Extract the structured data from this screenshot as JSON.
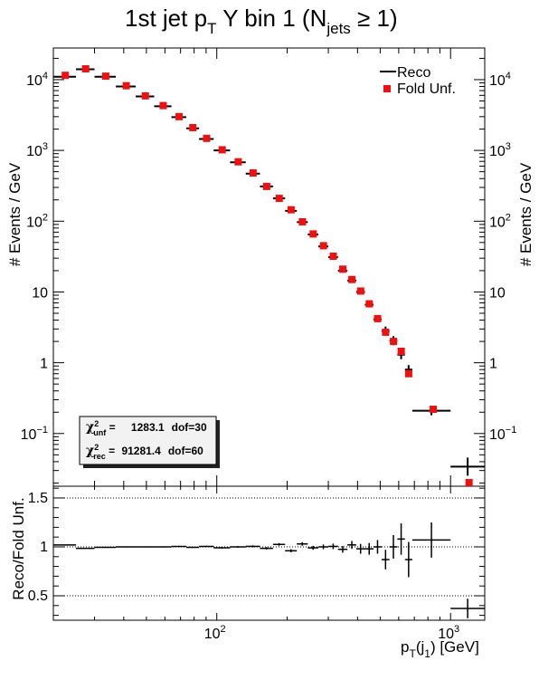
{
  "title": "1st jet p",
  "title_sub_T": "T",
  "title_rest": " Y bin 1 (N",
  "title_sub_jets": "jets",
  "title_end": " ≥ 1)",
  "legend": {
    "reco": "Reco",
    "fold": "Fold Unf."
  },
  "chi2": {
    "unf_label": "unf",
    "unf_value": "1283.1",
    "unf_dof": "dof=30",
    "rec_label": "rec",
    "rec_value": "91281.4",
    "rec_dof": "dof=60"
  },
  "colors": {
    "fold_marker": "#ee1111",
    "reco": "#000000"
  },
  "chart_data": [
    {
      "type": "scatter",
      "panel": "top",
      "ylabel": "# Events / GeV",
      "xscale": "log",
      "yscale": "log",
      "xlim": [
        20,
        1400
      ],
      "ylim": [
        0.018,
        28000
      ],
      "y_ticks": [
        {
          "v": 0.1,
          "t": "10",
          "sup": "−1"
        },
        {
          "v": 1,
          "t": "1"
        },
        {
          "v": 10,
          "t": "10"
        },
        {
          "v": 100,
          "t": "10",
          "sup": "2"
        },
        {
          "v": 1000,
          "t": "10",
          "sup": "3"
        },
        {
          "v": 10000,
          "t": "10",
          "sup": "4"
        }
      ],
      "series": [
        {
          "name": "Reco",
          "points": [
            {
              "x0": 20,
              "x1": 25,
              "y": 11000
            },
            {
              "x0": 25,
              "x1": 30,
              "y": 14000
            },
            {
              "x0": 30,
              "x1": 37,
              "y": 11000
            },
            {
              "x0": 37,
              "x1": 45,
              "y": 8000
            },
            {
              "x0": 45,
              "x1": 54,
              "y": 5800
            },
            {
              "x0": 54,
              "x1": 64,
              "y": 4200
            },
            {
              "x0": 64,
              "x1": 74,
              "y": 2950
            },
            {
              "x0": 74,
              "x1": 84,
              "y": 2050
            },
            {
              "x0": 84,
              "x1": 97,
              "y": 1450
            },
            {
              "x0": 97,
              "x1": 114,
              "y": 1000
            },
            {
              "x0": 114,
              "x1": 133,
              "y": 680
            },
            {
              "x0": 133,
              "x1": 153,
              "y": 470
            },
            {
              "x0": 153,
              "x1": 174,
              "y": 310
            },
            {
              "x0": 174,
              "x1": 196,
              "y": 210
            },
            {
              "x0": 196,
              "x1": 220,
              "y": 140
            },
            {
              "x0": 220,
              "x1": 245,
              "y": 97
            },
            {
              "x0": 245,
              "x1": 272,
              "y": 65
            },
            {
              "x0": 272,
              "x1": 300,
              "y": 44
            },
            {
              "x0": 300,
              "x1": 330,
              "y": 31
            },
            {
              "x0": 330,
              "x1": 362,
              "y": 20
            },
            {
              "x0": 362,
              "x1": 395,
              "y": 14.5
            },
            {
              "x0": 395,
              "x1": 430,
              "y": 10
            },
            {
              "x0": 430,
              "x1": 468,
              "y": 6.6
            },
            {
              "x0": 468,
              "x1": 507,
              "y": 4.1
            },
            {
              "x0": 507,
              "x1": 548,
              "y": 2.8
            },
            {
              "x0": 548,
              "x1": 592,
              "y": 2.05
            },
            {
              "x0": 592,
              "x1": 638,
              "y": 1.3
            },
            {
              "x0": 638,
              "x1": 686,
              "y": 0.8
            },
            {
              "x0": 686,
              "x1": 1000,
              "y": 0.21
            },
            {
              "x0": 1000,
              "x1": 1400,
              "y": 0.034
            }
          ]
        },
        {
          "name": "Fold Unf.",
          "points": [
            {
              "x": 22.5,
              "y": 11500
            },
            {
              "x": 27.5,
              "y": 14200
            },
            {
              "x": 33.5,
              "y": 11200
            },
            {
              "x": 41,
              "y": 8200
            },
            {
              "x": 49.5,
              "y": 5900
            },
            {
              "x": 59,
              "y": 4300
            },
            {
              "x": 69,
              "y": 3000
            },
            {
              "x": 79,
              "y": 2100
            },
            {
              "x": 90.5,
              "y": 1480
            },
            {
              "x": 105.5,
              "y": 1020
            },
            {
              "x": 123.5,
              "y": 690
            },
            {
              "x": 143,
              "y": 480
            },
            {
              "x": 163.5,
              "y": 310
            },
            {
              "x": 185,
              "y": 210
            },
            {
              "x": 208,
              "y": 145
            },
            {
              "x": 232.5,
              "y": 98
            },
            {
              "x": 258.5,
              "y": 66
            },
            {
              "x": 286,
              "y": 45
            },
            {
              "x": 315,
              "y": 32
            },
            {
              "x": 346,
              "y": 21
            },
            {
              "x": 378.5,
              "y": 15
            },
            {
              "x": 412.5,
              "y": 10.3
            },
            {
              "x": 449,
              "y": 6.8
            },
            {
              "x": 487.5,
              "y": 4.2
            },
            {
              "x": 527.5,
              "y": 2.7
            },
            {
              "x": 570,
              "y": 2.0
            },
            {
              "x": 615,
              "y": 1.45
            },
            {
              "x": 662,
              "y": 0.7
            },
            {
              "x": 843,
              "y": 0.22
            },
            {
              "x": 1200,
              "y": 0.0145
            }
          ]
        }
      ]
    },
    {
      "type": "scatter",
      "panel": "ratio",
      "ylabel": "Reco/Fold Unf.",
      "xlabel": "p",
      "xlabel_sub1": "T",
      "xlabel_mid": "(j",
      "xlabel_sub2": "1",
      "xlabel_end": ") [GeV]",
      "xscale": "log",
      "xlim": [
        20,
        1400
      ],
      "ylim": [
        0.25,
        1.62
      ],
      "y_ticks": [
        {
          "v": 0.5,
          "t": "0.5"
        },
        {
          "v": 1,
          "t": "1"
        },
        {
          "v": 1.5,
          "t": "1.5"
        }
      ],
      "x_ticks": [
        {
          "v": 100,
          "t": "10",
          "sup": "2"
        },
        {
          "v": 1000,
          "t": "10",
          "sup": "3"
        }
      ],
      "reference_lines": [
        0.5,
        1,
        1.5
      ],
      "points": [
        {
          "x0": 20,
          "x1": 25,
          "y": 1.02,
          "e": 0.005
        },
        {
          "x0": 25,
          "x1": 30,
          "y": 0.985,
          "e": 0.005
        },
        {
          "x0": 30,
          "x1": 37,
          "y": 0.995,
          "e": 0.005
        },
        {
          "x0": 37,
          "x1": 45,
          "y": 1.0,
          "e": 0.005
        },
        {
          "x0": 45,
          "x1": 54,
          "y": 1.0,
          "e": 0.005
        },
        {
          "x0": 54,
          "x1": 64,
          "y": 1.0,
          "e": 0.005
        },
        {
          "x0": 64,
          "x1": 74,
          "y": 1.005,
          "e": 0.006
        },
        {
          "x0": 74,
          "x1": 84,
          "y": 0.995,
          "e": 0.006
        },
        {
          "x0": 84,
          "x1": 97,
          "y": 1.005,
          "e": 0.007
        },
        {
          "x0": 97,
          "x1": 114,
          "y": 0.99,
          "e": 0.008
        },
        {
          "x0": 114,
          "x1": 133,
          "y": 1.0,
          "e": 0.008
        },
        {
          "x0": 133,
          "x1": 153,
          "y": 1.005,
          "e": 0.01
        },
        {
          "x0": 153,
          "x1": 174,
          "y": 0.985,
          "e": 0.012
        },
        {
          "x0": 174,
          "x1": 196,
          "y": 1.025,
          "e": 0.014
        },
        {
          "x0": 196,
          "x1": 220,
          "y": 0.96,
          "e": 0.016
        },
        {
          "x0": 220,
          "x1": 245,
          "y": 1.03,
          "e": 0.018
        },
        {
          "x0": 245,
          "x1": 272,
          "y": 0.99,
          "e": 0.02
        },
        {
          "x0": 272,
          "x1": 300,
          "y": 1.0,
          "e": 0.024
        },
        {
          "x0": 300,
          "x1": 330,
          "y": 1.005,
          "e": 0.028
        },
        {
          "x0": 330,
          "x1": 362,
          "y": 0.975,
          "e": 0.034
        },
        {
          "x0": 362,
          "x1": 395,
          "y": 1.02,
          "e": 0.04
        },
        {
          "x0": 395,
          "x1": 430,
          "y": 0.98,
          "e": 0.05
        },
        {
          "x0": 430,
          "x1": 468,
          "y": 0.98,
          "e": 0.06
        },
        {
          "x0": 468,
          "x1": 507,
          "y": 1.0,
          "e": 0.07
        },
        {
          "x0": 507,
          "x1": 548,
          "y": 0.87,
          "e": 0.1
        },
        {
          "x0": 548,
          "x1": 592,
          "y": 1.0,
          "e": 0.12
        },
        {
          "x0": 592,
          "x1": 638,
          "y": 1.08,
          "e": 0.16
        },
        {
          "x0": 638,
          "x1": 686,
          "y": 0.87,
          "e": 0.18
        },
        {
          "x0": 686,
          "x1": 1000,
          "y": 1.07,
          "e": 0.18
        },
        {
          "x0": 1000,
          "x1": 1400,
          "y": 0.37,
          "e": 0.1
        }
      ]
    }
  ]
}
